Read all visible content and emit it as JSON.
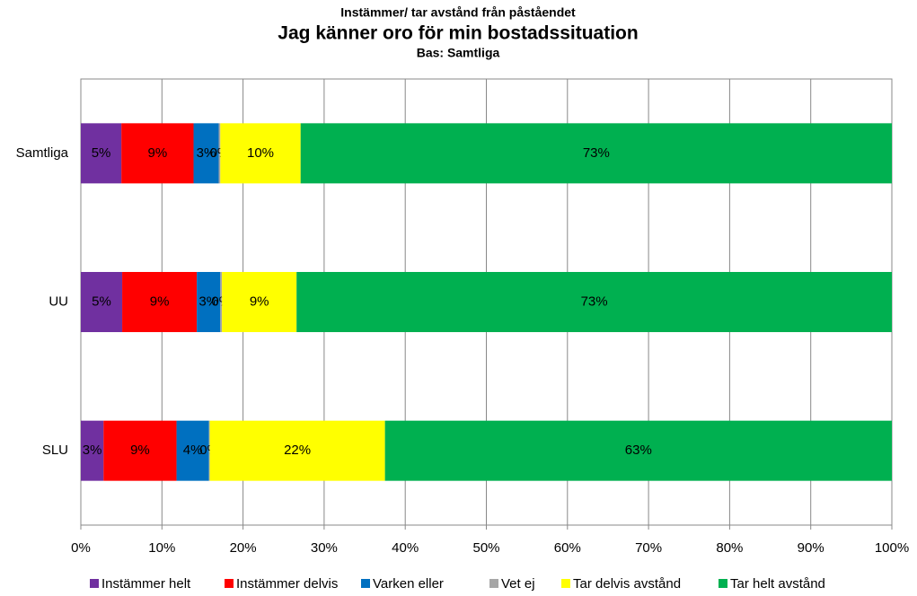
{
  "chart_data": {
    "type": "stacked_barh",
    "supertitle": "Instämmer/ tar avstånd från påståendet",
    "title": "Jag  känner oro för min bostadssituation",
    "subtitle": "Bas: Samtliga",
    "categories": [
      "Samtliga",
      "UU",
      "SLU"
    ],
    "series": [
      {
        "name": "Instämmer helt",
        "color": "#7030a0",
        "values": [
          5.0,
          5.1,
          2.8
        ],
        "value_labels": [
          "5%",
          "5%",
          "3%"
        ]
      },
      {
        "name": "Instämmer delvis",
        "color": "#ff0000",
        "values": [
          8.9,
          9.2,
          9.0
        ],
        "value_labels": [
          "9%",
          "9%",
          "9%"
        ]
      },
      {
        "name": "Varken eller",
        "color": "#0070c0",
        "values": [
          3.1,
          2.9,
          4.0
        ],
        "value_labels": [
          "3%",
          "3%",
          "4%"
        ]
      },
      {
        "name": "Vet ej",
        "color": "#a6a6a6",
        "values": [
          0.2,
          0.2,
          0.1
        ],
        "value_labels": [
          "0%",
          "0%",
          "0%"
        ]
      },
      {
        "name": "Tar delvis avstånd",
        "color": "#ffff00",
        "values": [
          9.9,
          9.2,
          21.6
        ],
        "value_labels": [
          "10%",
          "9%",
          "22%"
        ]
      },
      {
        "name": "Tar helt avstånd",
        "color": "#00b050",
        "values": [
          72.9,
          73.4,
          62.5
        ],
        "value_labels": [
          "73%",
          "73%",
          "63%"
        ]
      }
    ],
    "xlim": [
      0,
      100
    ],
    "xticks": [
      {
        "value": 0,
        "label": "0%"
      },
      {
        "value": 10,
        "label": "10%"
      },
      {
        "value": 20,
        "label": "20%"
      },
      {
        "value": 30,
        "label": "30%"
      },
      {
        "value": 40,
        "label": "40%"
      },
      {
        "value": 50,
        "label": "50%"
      },
      {
        "value": 60,
        "label": "60%"
      },
      {
        "value": 70,
        "label": "70%"
      },
      {
        "value": 80,
        "label": "80%"
      },
      {
        "value": 90,
        "label": "90%"
      },
      {
        "value": 100,
        "label": "100%"
      }
    ],
    "grid": true,
    "legend": "bottom"
  }
}
